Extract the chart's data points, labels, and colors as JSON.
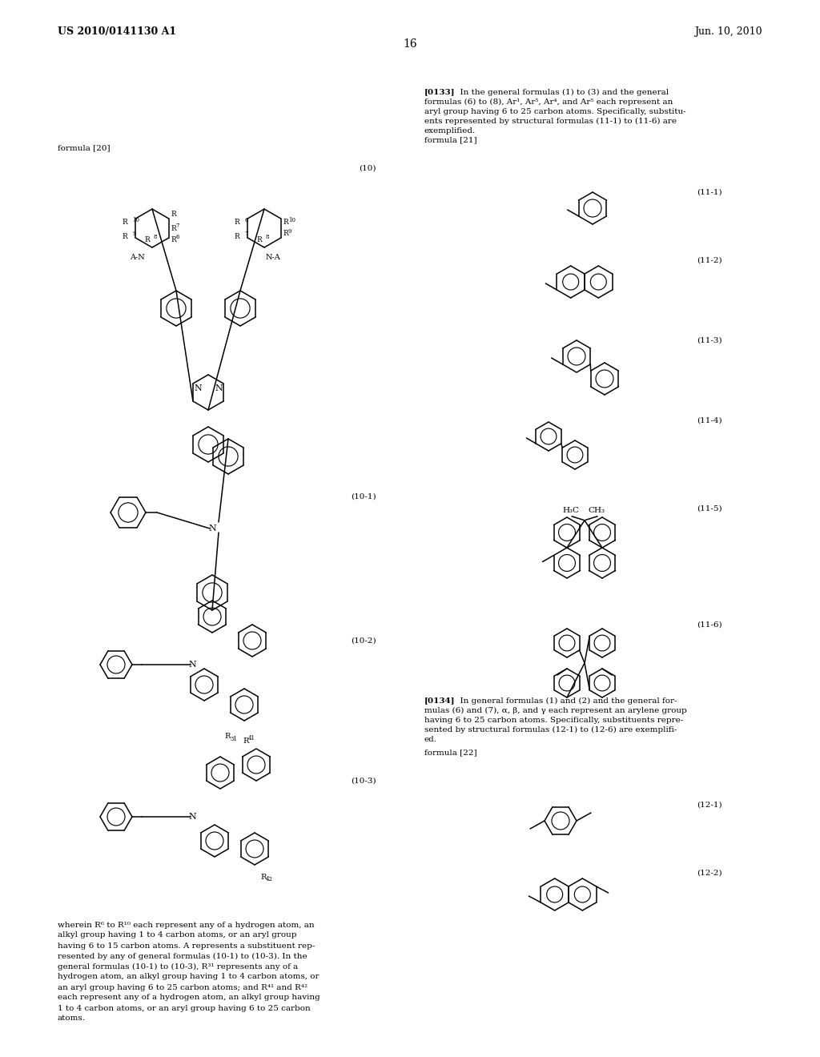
{
  "page_title_left": "US 2010/0141130 A1",
  "page_title_right": "Jun. 10, 2010",
  "page_number": "16",
  "background_color": "#ffffff",
  "text_color": "#000000",
  "formula20_label": "formula [20]",
  "formula21_label": "formula [21]",
  "formula22_label": "formula [22]",
  "label_10": "(10)",
  "label_101": "(10-1)",
  "label_102": "(10-2)",
  "label_103": "(10-3)",
  "label_111": "(11-1)",
  "label_112": "(11-2)",
  "label_113": "(11-3)",
  "label_114": "(11-4)",
  "label_115": "(11-5)",
  "label_116": "(11-6)",
  "label_121": "(12-1)",
  "label_122": "(12-2)",
  "para133_bold": "[0133]",
  "para133_rest": "  In the general formulas (1) to (3) and the general formulas (6) to (8), Ar¹, Ar⁵, Ar⁴, and Ar⁵ each represent an aryl group having 6 to 25 carbon atoms. Specifically, substitu-ents represented by structural formulas (11-1) to (11-6) are exemplified.",
  "para134_bold": "[0134]",
  "para134_rest": "  In general formulas (1) and (2) and the general for-mulas (6) and (7), α, β, and γ each represent an arylene group having 6 to 25 carbon atoms. Specifically, substituents repre-sented by structural formulas (12-1) to (12-6) are exemplifi-ed.",
  "bottom_text_lines": [
    "wherein R⁶ to R¹⁰ each represent any of a hydrogen atom, an",
    "alkyl group having 1 to 4 carbon atoms, or an aryl group",
    "having 6 to 15 carbon atoms. A represents a substituent rep-",
    "resented by any of general formulas (10-1) to (10-3). In the",
    "general formulas (10-1) to (10-3), R³¹ represents any of a",
    "hydrogen atom, an alkyl group having 1 to 4 carbon atoms, or",
    "an aryl group having 6 to 25 carbon atoms; and R⁴¹ and R⁴²",
    "each represent any of a hydrogen atom, an alkyl group having",
    "1 to 4 carbon atoms, or an aryl group having 6 to 25 carbon",
    "atoms."
  ]
}
